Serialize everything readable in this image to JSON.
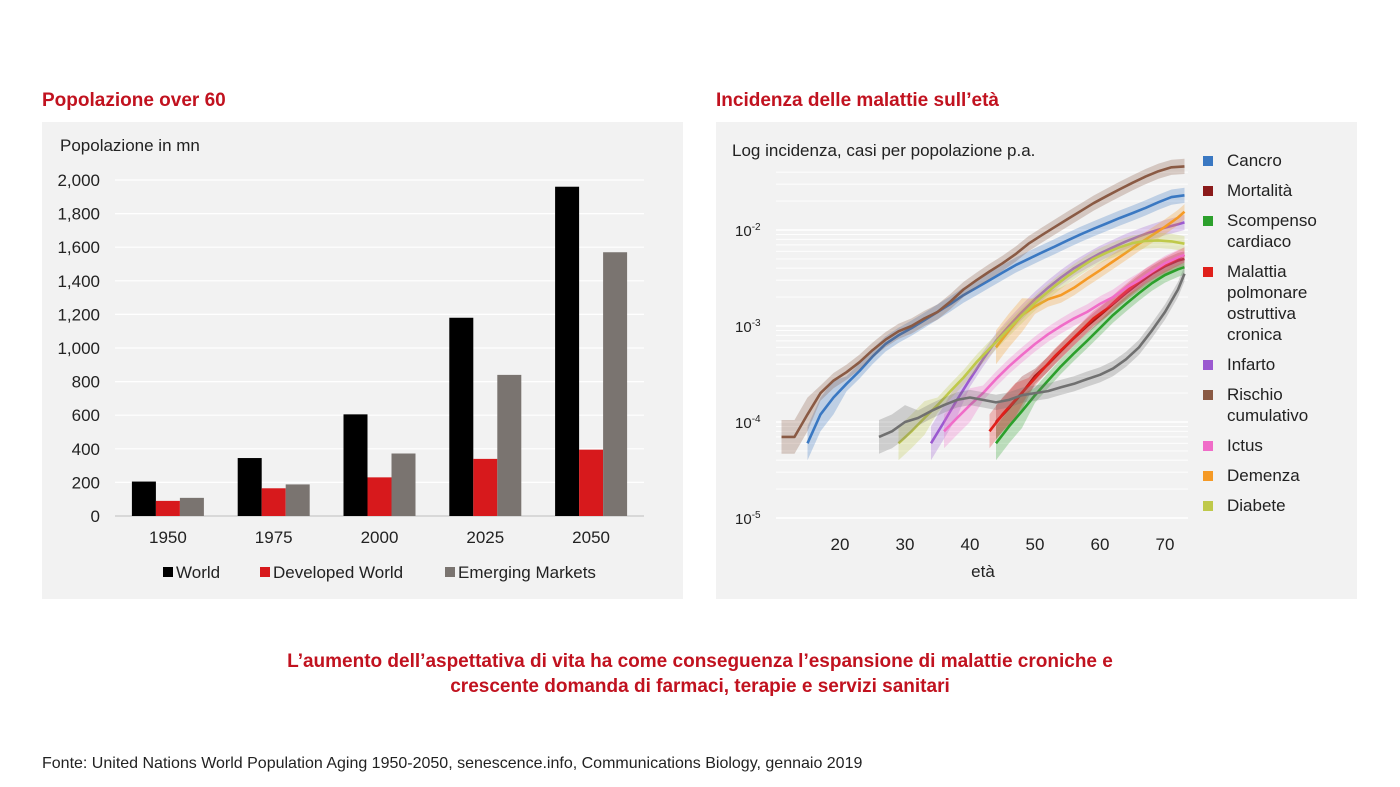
{
  "left_title": "Popolazione over 60",
  "right_title": "Incidenza delle malattie sull’età",
  "conclusion_line1": "L’aumento dell’aspettativa di vita ha come conseguenza l’espansione di malattie croniche e",
  "conclusion_line2": "crescente domanda di farmaci, terapie e servizi sanitari",
  "source": "Fonte: United Nations World Population Aging 1950-2050, senescence.info, Communications Biology, gennaio 2019",
  "chart_data": [
    {
      "type": "bar",
      "ylabel": "Popolazione in mn",
      "ylim": [
        0,
        2000
      ],
      "yticks": [
        "0",
        "200",
        "400",
        "600",
        "800",
        "1,000",
        "1,200",
        "1,400",
        "1,600",
        "1,800",
        "2,000"
      ],
      "categories": [
        "1950",
        "1975",
        "2000",
        "2025",
        "2050"
      ],
      "series": [
        {
          "name": "World",
          "color": "#000000",
          "values": [
            205,
            345,
            605,
            1180,
            1960
          ]
        },
        {
          "name": "Developed World",
          "color": "#d7191c",
          "values": [
            90,
            165,
            230,
            340,
            395
          ]
        },
        {
          "name": "Emerging Markets",
          "color": "#7a7470",
          "values": [
            108,
            188,
            372,
            840,
            1570
          ]
        }
      ],
      "legend": "bottom",
      "grid": true
    },
    {
      "type": "line",
      "ylabel": "Log incidenza, casi per popolazione p.a.",
      "xlabel": "età",
      "yscale": "log",
      "ylim": [
        1e-05,
        0.05
      ],
      "yticks": [
        "10-5",
        "10-4",
        "10-3",
        "10-2"
      ],
      "xticks": [
        "20",
        "30",
        "40",
        "50",
        "60",
        "70"
      ],
      "xlim": [
        11,
        74
      ],
      "legend": "right",
      "series": [
        {
          "name": "Cancro",
          "color": "#3a78c2",
          "x": [
            15,
            17,
            19,
            21,
            23,
            25,
            27,
            29,
            31,
            33,
            35,
            37,
            39,
            41,
            43,
            45,
            47,
            49,
            51,
            53,
            55,
            57,
            59,
            61,
            63,
            65,
            67,
            69,
            71,
            73
          ],
          "y": [
            6e-05,
            0.00012,
            0.00018,
            0.00025,
            0.00034,
            0.00048,
            0.00065,
            0.0008,
            0.00095,
            0.00115,
            0.0014,
            0.0017,
            0.0021,
            0.0025,
            0.003,
            0.0036,
            0.0043,
            0.005,
            0.0058,
            0.0067,
            0.0078,
            0.009,
            0.0103,
            0.0117,
            0.0133,
            0.015,
            0.017,
            0.0195,
            0.022,
            0.023
          ]
        },
        {
          "name": "Mortalità",
          "color": "#8b1a1a",
          "x": [
            44,
            46,
            48,
            50,
            52,
            54,
            56,
            58,
            60,
            62,
            64,
            66,
            68,
            70,
            72,
            73
          ],
          "y": [
            0.0001,
            0.00014,
            0.0002,
            0.0003,
            0.0004,
            0.00055,
            0.00075,
            0.001,
            0.0013,
            0.0017,
            0.0022,
            0.0028,
            0.0035,
            0.0042,
            0.0048,
            0.005
          ]
        },
        {
          "name": "Scompenso cardiaco",
          "color": "#2ca02c",
          "x": [
            44,
            46,
            48,
            50,
            52,
            54,
            56,
            58,
            60,
            62,
            64,
            66,
            68,
            70,
            72,
            73
          ],
          "y": [
            6e-05,
            9e-05,
            0.00013,
            0.00019,
            0.00027,
            0.00038,
            0.00052,
            0.0007,
            0.00095,
            0.0013,
            0.0017,
            0.0022,
            0.0028,
            0.0034,
            0.0039,
            0.0041
          ]
        },
        {
          "name": "Malattia polmonare ostruttiva cronica",
          "color": "#e0201b",
          "x": [
            43,
            45,
            47,
            49,
            51,
            53,
            55,
            57,
            59,
            61,
            63,
            65,
            67,
            69,
            71,
            73
          ],
          "y": [
            8e-05,
            0.00012,
            0.00017,
            0.00024,
            0.00034,
            0.00048,
            0.00065,
            0.00088,
            0.0012,
            0.0015,
            0.002,
            0.0026,
            0.0033,
            0.004,
            0.0047,
            0.0055
          ]
        },
        {
          "name": "Infarto",
          "color": "#9b59d0",
          "x": [
            34,
            36,
            38,
            40,
            42,
            44,
            46,
            48,
            50,
            52,
            54,
            56,
            58,
            60,
            62,
            64,
            66,
            68,
            70,
            72,
            73
          ],
          "y": [
            6e-05,
            0.0001,
            0.00017,
            0.00028,
            0.00045,
            0.0007,
            0.001,
            0.0014,
            0.0019,
            0.0025,
            0.0032,
            0.004,
            0.0048,
            0.0057,
            0.0066,
            0.0076,
            0.0086,
            0.0096,
            0.0106,
            0.0115,
            0.012
          ]
        },
        {
          "name": "Rischio cumulativo",
          "color": "#8a5a44",
          "x": [
            11,
            13,
            15,
            17,
            19,
            21,
            23,
            25,
            27,
            29,
            31,
            33,
            35,
            37,
            39,
            41,
            43,
            45,
            47,
            49,
            51,
            53,
            55,
            57,
            59,
            61,
            63,
            65,
            67,
            69,
            71,
            73
          ],
          "y": [
            7e-05,
            7e-05,
            0.00012,
            0.0002,
            0.00027,
            0.00033,
            0.00042,
            0.00056,
            0.00072,
            0.00088,
            0.001,
            0.0012,
            0.0014,
            0.0018,
            0.0024,
            0.003,
            0.0037,
            0.0045,
            0.0056,
            0.0072,
            0.0088,
            0.0107,
            0.013,
            0.0157,
            0.019,
            0.0225,
            0.0265,
            0.031,
            0.036,
            0.041,
            0.045,
            0.046
          ]
        },
        {
          "name": "Ictus",
          "color": "#f06cc8",
          "x": [
            36,
            38,
            40,
            42,
            44,
            46,
            48,
            50,
            52,
            54,
            56,
            58,
            60,
            62,
            64,
            66,
            68,
            70,
            72,
            73
          ],
          "y": [
            8e-05,
            0.00011,
            0.00015,
            0.0002,
            0.00028,
            0.00038,
            0.0005,
            0.00065,
            0.00082,
            0.001,
            0.0012,
            0.0014,
            0.0017,
            0.002,
            0.0025,
            0.003,
            0.0037,
            0.0045,
            0.0052,
            0.0055
          ]
        },
        {
          "name": "Demenza",
          "color": "#f59a26",
          "x": [
            44,
            46,
            48,
            50,
            52,
            54,
            56,
            58,
            60,
            62,
            64,
            66,
            68,
            70,
            72,
            73
          ],
          "y": [
            0.0006,
            0.0009,
            0.0013,
            0.0016,
            0.0019,
            0.0021,
            0.0025,
            0.0031,
            0.0038,
            0.0047,
            0.0058,
            0.0072,
            0.0088,
            0.0108,
            0.0135,
            0.0155
          ]
        },
        {
          "name": "Diabete",
          "color": "#bfc94a",
          "x": [
            29,
            31,
            33,
            35,
            37,
            39,
            41,
            43,
            45,
            47,
            49,
            51,
            53,
            55,
            57,
            59,
            61,
            63,
            65,
            67,
            69,
            71,
            73
          ],
          "y": [
            6e-05,
            8e-05,
            0.00011,
            0.00015,
            0.00021,
            0.00029,
            0.00042,
            0.00058,
            0.0008,
            0.0011,
            0.0015,
            0.002,
            0.0026,
            0.0033,
            0.0041,
            0.005,
            0.0058,
            0.0066,
            0.0073,
            0.0077,
            0.0078,
            0.0076,
            0.0072
          ]
        },
        {
          "name": "",
          "color": "#707070",
          "x": [
            26,
            28,
            30,
            32,
            34,
            36,
            38,
            40,
            42,
            44,
            46,
            48,
            50,
            52,
            54,
            56,
            58,
            60,
            62,
            64,
            66,
            68,
            70,
            72,
            73
          ],
          "y": [
            7e-05,
            8e-05,
            0.0001,
            0.00011,
            0.00013,
            0.00015,
            0.00017,
            0.00018,
            0.00017,
            0.00016,
            0.00017,
            0.00019,
            0.0002,
            0.00021,
            0.00023,
            0.00025,
            0.00028,
            0.00031,
            0.00036,
            0.00045,
            0.0006,
            0.0009,
            0.0014,
            0.0024,
            0.0035
          ]
        }
      ]
    }
  ]
}
